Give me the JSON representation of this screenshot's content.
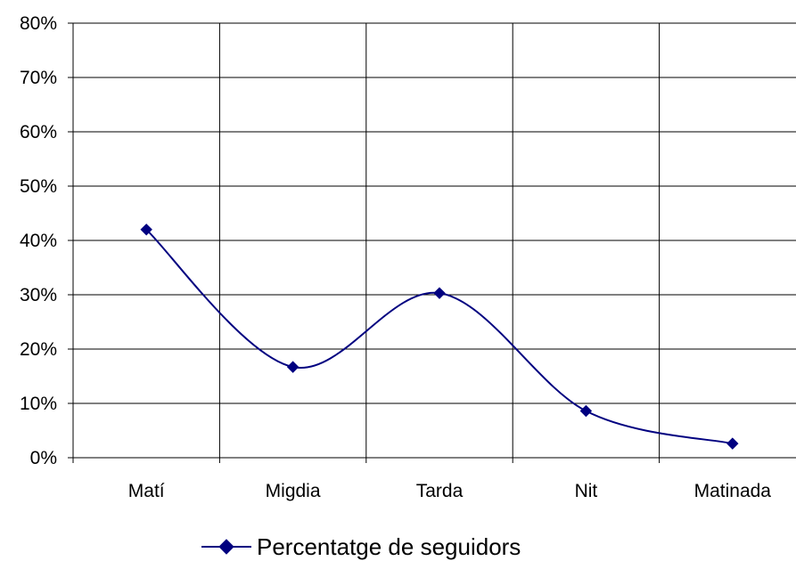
{
  "chart_data": {
    "type": "line",
    "smooth": true,
    "categories": [
      "Matí",
      "Migdia",
      "Tarda",
      "Nit",
      "Matinada"
    ],
    "series": [
      {
        "name": "Percentatge de seguidors",
        "values": [
          42.0,
          16.7,
          30.3,
          8.6,
          2.6
        ],
        "color": "#000080",
        "marker": "diamond"
      }
    ],
    "ylim": [
      0,
      80
    ],
    "yticks": [
      0,
      10,
      20,
      30,
      40,
      50,
      60,
      70,
      80
    ],
    "ytick_labels": [
      "0%",
      "10%",
      "20%",
      "30%",
      "40%",
      "50%",
      "60%",
      "70%",
      "80%"
    ],
    "grid": true,
    "legend_position": "bottom"
  }
}
